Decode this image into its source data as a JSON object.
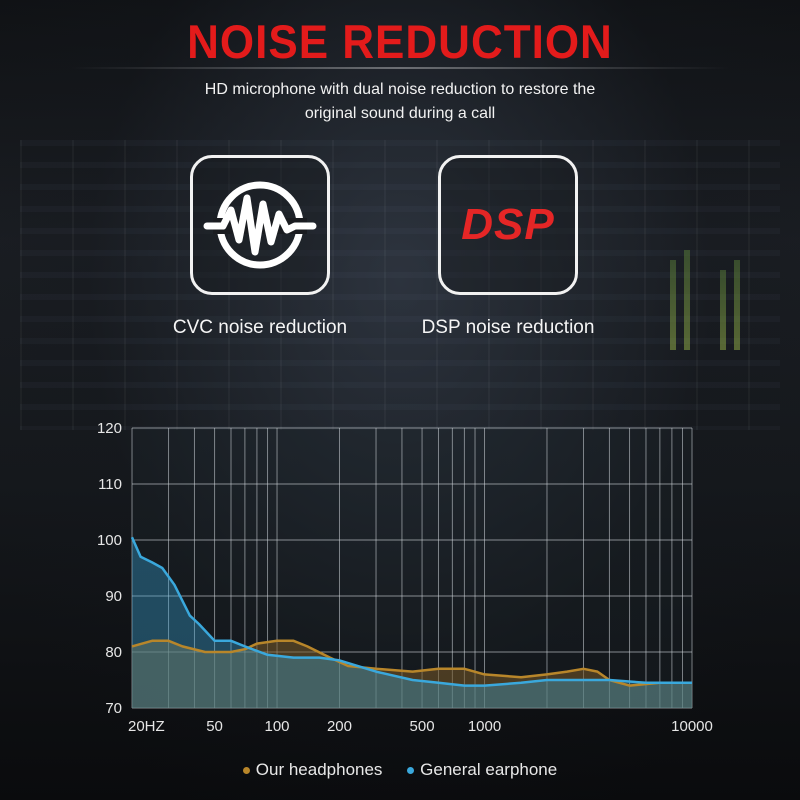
{
  "header": {
    "title": "NOISE REDUCTION",
    "subtitle_line1": "HD microphone with dual noise reduction to restore the",
    "subtitle_line2": "original sound during a call"
  },
  "features": [
    {
      "label": "CVC noise reduction",
      "icon": "sound-wave-icon"
    },
    {
      "label": "DSP noise reduction",
      "icon": "dsp-icon",
      "icon_text": "DSP"
    }
  ],
  "colors": {
    "title": "#e31b1b",
    "ours": "#b8862a",
    "general": "#3aa8dc",
    "dsp": "#e52626"
  },
  "chart_data": {
    "type": "area",
    "x_scale": "log",
    "x_ticks": [
      {
        "value": 20,
        "label": "20HZ"
      },
      {
        "value": 50,
        "label": "50"
      },
      {
        "value": 100,
        "label": "100"
      },
      {
        "value": 200,
        "label": "200"
      },
      {
        "value": 500,
        "label": "500"
      },
      {
        "value": 1000,
        "label": "1000"
      },
      {
        "value": 10000,
        "label": "10000"
      }
    ],
    "y_ticks": [
      120,
      110,
      100,
      90,
      80,
      70
    ],
    "ylim": [
      70,
      120
    ],
    "xlim": [
      20,
      10000
    ],
    "grid": true,
    "legend_position": "bottom",
    "series": [
      {
        "name": "Our headphones",
        "color": "#b8862a",
        "points": [
          [
            20,
            81
          ],
          [
            25,
            82
          ],
          [
            30,
            82
          ],
          [
            35,
            81
          ],
          [
            45,
            80
          ],
          [
            60,
            80
          ],
          [
            70,
            80.5
          ],
          [
            80,
            81.5
          ],
          [
            100,
            82
          ],
          [
            120,
            82
          ],
          [
            140,
            81
          ],
          [
            180,
            79
          ],
          [
            220,
            77.5
          ],
          [
            300,
            77
          ],
          [
            450,
            76.5
          ],
          [
            600,
            77
          ],
          [
            800,
            77
          ],
          [
            1000,
            76
          ],
          [
            1500,
            75.5
          ],
          [
            2000,
            76
          ],
          [
            2500,
            76.5
          ],
          [
            3000,
            77
          ],
          [
            3500,
            76.5
          ],
          [
            4000,
            75
          ],
          [
            5000,
            74
          ],
          [
            7000,
            74.5
          ],
          [
            10000,
            74.5
          ]
        ]
      },
      {
        "name": "General earphone",
        "color": "#3aa8dc",
        "points": [
          [
            20,
            100.5
          ],
          [
            22,
            97
          ],
          [
            25,
            96
          ],
          [
            28,
            95
          ],
          [
            32,
            92
          ],
          [
            38,
            86.5
          ],
          [
            42,
            85
          ],
          [
            50,
            82
          ],
          [
            60,
            82
          ],
          [
            70,
            81
          ],
          [
            90,
            79.5
          ],
          [
            120,
            79
          ],
          [
            160,
            79
          ],
          [
            200,
            78.5
          ],
          [
            300,
            76.5
          ],
          [
            450,
            75
          ],
          [
            600,
            74.5
          ],
          [
            800,
            74
          ],
          [
            1000,
            74
          ],
          [
            1500,
            74.5
          ],
          [
            2000,
            75
          ],
          [
            3000,
            75
          ],
          [
            4000,
            75
          ],
          [
            6000,
            74.5
          ],
          [
            10000,
            74.5
          ]
        ]
      }
    ]
  }
}
